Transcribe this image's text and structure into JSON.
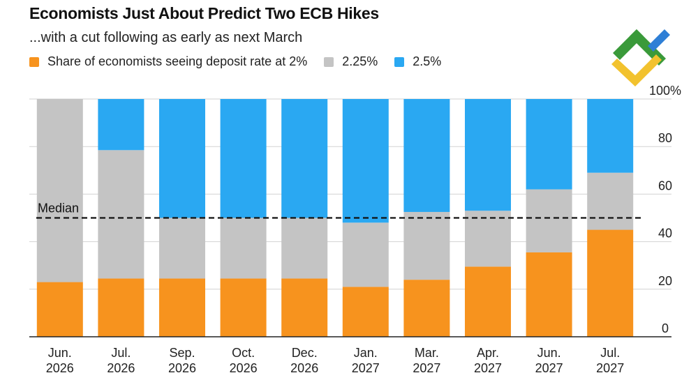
{
  "title": "Economists Just About Predict Two ECB Hikes",
  "subtitle": "...with a cut following as early as next March",
  "legend": [
    {
      "label": "Share of economists seeing deposit rate at 2%",
      "color": "#f7931e"
    },
    {
      "label": "2.25%",
      "color": "#c4c4c4"
    },
    {
      "label": "2.5%",
      "color": "#2aa8f2"
    }
  ],
  "logo_icon": "brand-logo-icon",
  "chart_data": {
    "type": "bar",
    "stacked": true,
    "categories": [
      [
        "Jun.",
        "2026"
      ],
      [
        "Jul.",
        "2026"
      ],
      [
        "Sep.",
        "2026"
      ],
      [
        "Oct.",
        "2026"
      ],
      [
        "Dec.",
        "2026"
      ],
      [
        "Jan.",
        "2027"
      ],
      [
        "Mar.",
        "2027"
      ],
      [
        "Apr.",
        "2027"
      ],
      [
        "Jun.",
        "2027"
      ],
      [
        "Jul.",
        "2027"
      ]
    ],
    "series": [
      {
        "name": "Share of economists seeing deposit rate at 2%",
        "color": "#f7931e",
        "values": [
          23,
          24.5,
          24.5,
          24.5,
          24.5,
          21,
          24,
          29.5,
          35.5,
          45
        ]
      },
      {
        "name": "2.25%",
        "color": "#c4c4c4",
        "values": [
          77,
          54,
          25.5,
          25.5,
          25.5,
          27,
          28.5,
          23.5,
          26.5,
          24
        ]
      },
      {
        "name": "2.5%",
        "color": "#2aa8f2",
        "values": [
          0,
          21.5,
          50,
          50,
          50,
          52,
          47.5,
          47,
          38,
          31
        ]
      }
    ],
    "ylim": [
      0,
      100
    ],
    "yticks": [
      "0",
      "20",
      "40",
      "60",
      "80",
      "100%"
    ],
    "grid": true,
    "y_axis_side": "right",
    "median": {
      "label": "Median",
      "value": 50
    }
  }
}
